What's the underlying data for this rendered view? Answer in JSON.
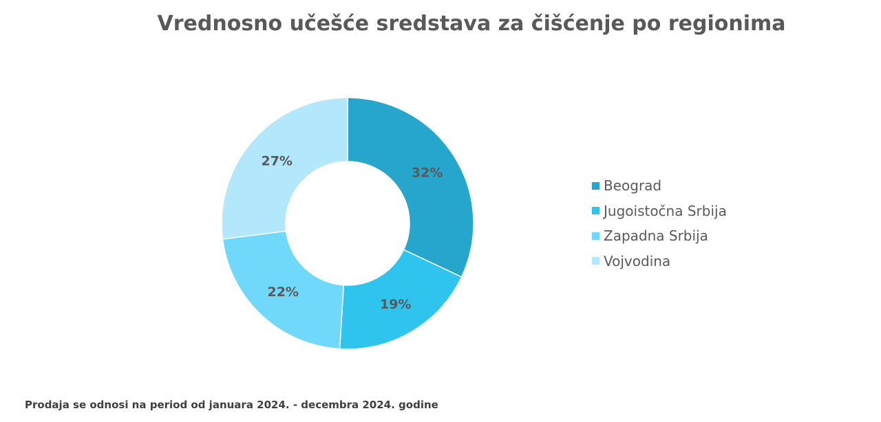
{
  "chart_data": {
    "type": "pie",
    "subtype": "donut",
    "title": "Vrednosno učešće sredstava za čišćenje po regionima",
    "categories": [
      "Beograd",
      "Jugoistočna Srbija",
      "Zapadna Srbija",
      "Vojvodina"
    ],
    "values": [
      32,
      19,
      22,
      27
    ],
    "value_labels": [
      "32%",
      "19%",
      "22%",
      "27%"
    ],
    "unit": "%",
    "colors": [
      "#26A5CD",
      "#2EC4EE",
      "#70D8FB",
      "#B2E7FC"
    ],
    "legend_position": "right"
  },
  "footnote": "Prodaja se odnosi na period od januara 2024. - decembra 2024. godine"
}
